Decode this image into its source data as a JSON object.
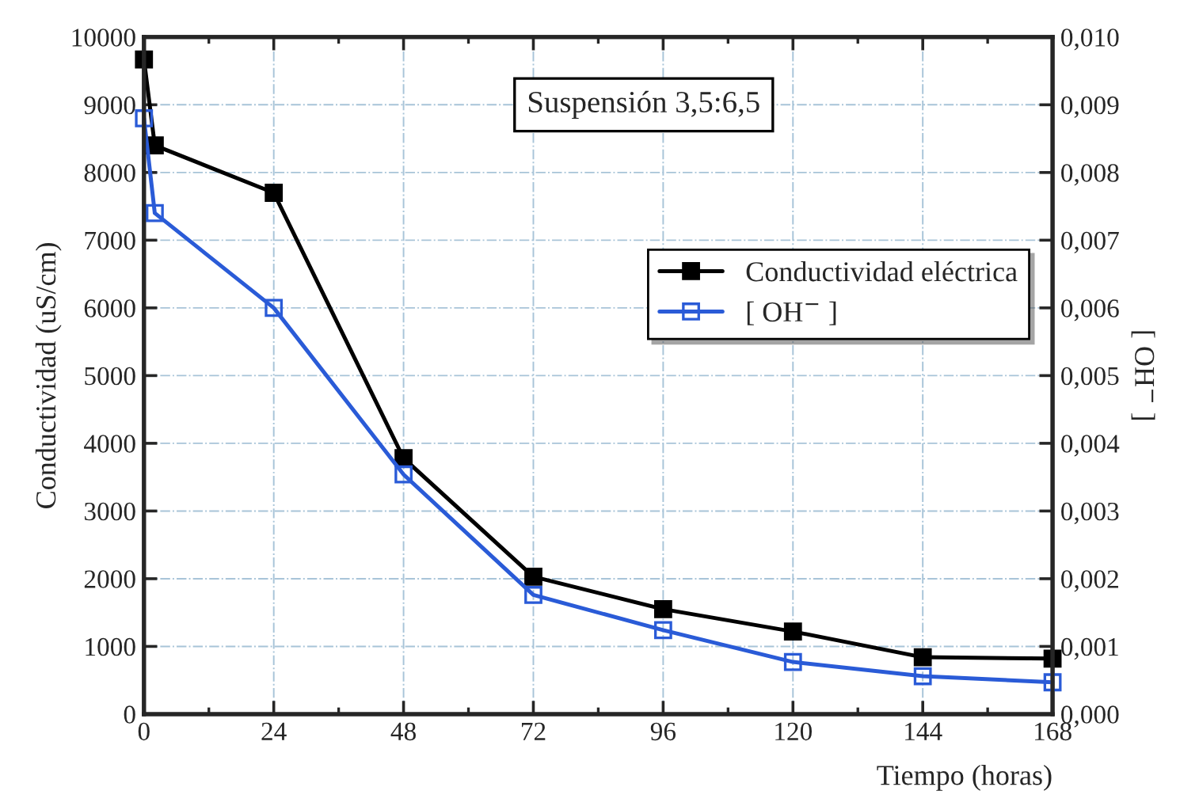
{
  "chart_data": {
    "type": "line",
    "xlabel": "Tiempo (horas)",
    "ylabel": "Conductividad (uS/cm)",
    "y2label": "[ OH$^{−}$ ]",
    "annotations": [
      "Suspensión 3,5:6,5"
    ],
    "x": [
      0,
      2,
      24,
      48,
      72,
      96,
      120,
      144,
      168
    ],
    "series": [
      {
        "name": "Conductividad eléctrica",
        "color": "#000000",
        "marker": "square",
        "values": [
          9670,
          8400,
          7700,
          3780,
          2030,
          1550,
          1220,
          840,
          820
        ]
      },
      {
        "name": "[ OH$^{−}$ ]",
        "color": "#2a5bd7",
        "marker": "square",
        "axis": "y2",
        "values": [
          0.0088,
          0.0074,
          0.006,
          0.00354,
          0.00176,
          0.00124,
          0.00077,
          0.00056,
          0.00047
        ]
      }
    ],
    "xlim": [
      0,
      168
    ],
    "xticks": [
      0,
      24,
      48,
      72,
      96,
      120,
      144,
      168
    ],
    "ylim": [
      0,
      10000
    ],
    "yticks": [
      0,
      1000,
      2000,
      3000,
      4000,
      5000,
      6000,
      7000,
      8000,
      9000,
      10000
    ],
    "y2lim": [
      0,
      0.01
    ],
    "y2ticks": [
      {
        "value": 0,
        "label": "0,000"
      },
      {
        "value": 0.001,
        "label": "0,001"
      },
      {
        "value": 0.002,
        "label": "0,002"
      },
      {
        "value": 0.003,
        "label": "0,003"
      },
      {
        "value": 0.004,
        "label": "0,004"
      },
      {
        "value": 0.005,
        "label": "0,005"
      },
      {
        "value": 0.006,
        "label": "0,006"
      },
      {
        "value": 0.007,
        "label": "0,007"
      },
      {
        "value": 0.008,
        "label": "0,008"
      },
      {
        "value": 0.009,
        "label": "0,009"
      },
      {
        "value": 0.01,
        "label": "0,010"
      }
    ],
    "grid": true,
    "legend": "right",
    "line_style": "solid"
  }
}
